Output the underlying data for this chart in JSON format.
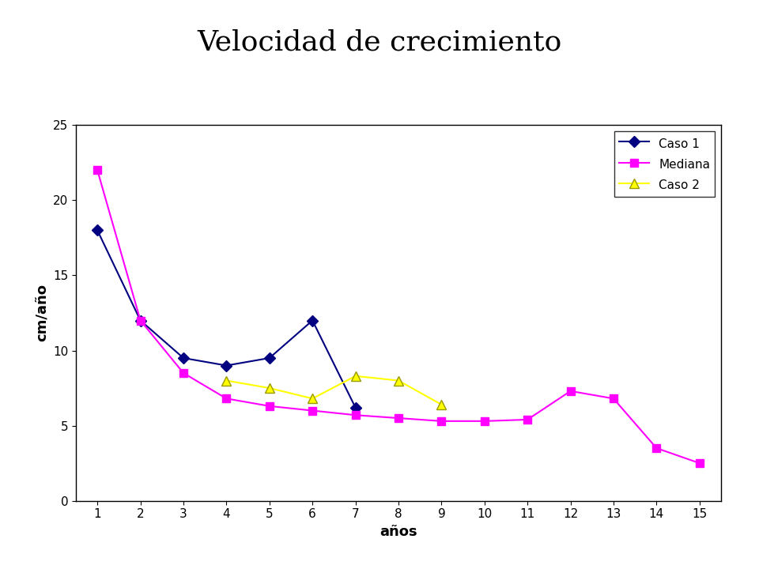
{
  "title": "Velocidad de crecimiento",
  "xlabel": "años",
  "ylabel": "cm/año",
  "caso1": {
    "x": [
      1,
      2,
      3,
      4,
      5,
      6,
      7
    ],
    "y": [
      18,
      12,
      9.5,
      9,
      9.5,
      12,
      6.2
    ],
    "color": "#000080",
    "marker": "D",
    "label": "Caso 1"
  },
  "mediana": {
    "x": [
      1,
      2,
      3,
      4,
      5,
      6,
      7,
      8,
      9,
      10,
      11,
      12,
      13,
      14,
      15
    ],
    "y": [
      22,
      12,
      8.5,
      6.8,
      6.3,
      6.0,
      5.7,
      5.5,
      5.3,
      5.3,
      5.4,
      7.3,
      6.8,
      3.5,
      2.5
    ],
    "color": "#FF00FF",
    "marker": "s",
    "label": "Mediana"
  },
  "caso2": {
    "x": [
      4,
      5,
      6,
      7,
      8,
      9
    ],
    "y": [
      8.0,
      7.5,
      6.8,
      8.3,
      8.0,
      6.4
    ],
    "color": "#FFFF00",
    "marker": "^",
    "label": "Caso 2"
  },
  "ylim": [
    0,
    25
  ],
  "yticks": [
    0,
    5,
    10,
    15,
    20,
    25
  ],
  "xticks": [
    1,
    2,
    3,
    4,
    5,
    6,
    7,
    8,
    9,
    10,
    11,
    12,
    13,
    14,
    15
  ],
  "title_fontsize": 26,
  "axis_label_fontsize": 13,
  "tick_fontsize": 11,
  "legend_fontsize": 11,
  "background_color": "#ffffff",
  "plot_bg_color": "#ffffff",
  "marker_edge_yellow": "#999900"
}
